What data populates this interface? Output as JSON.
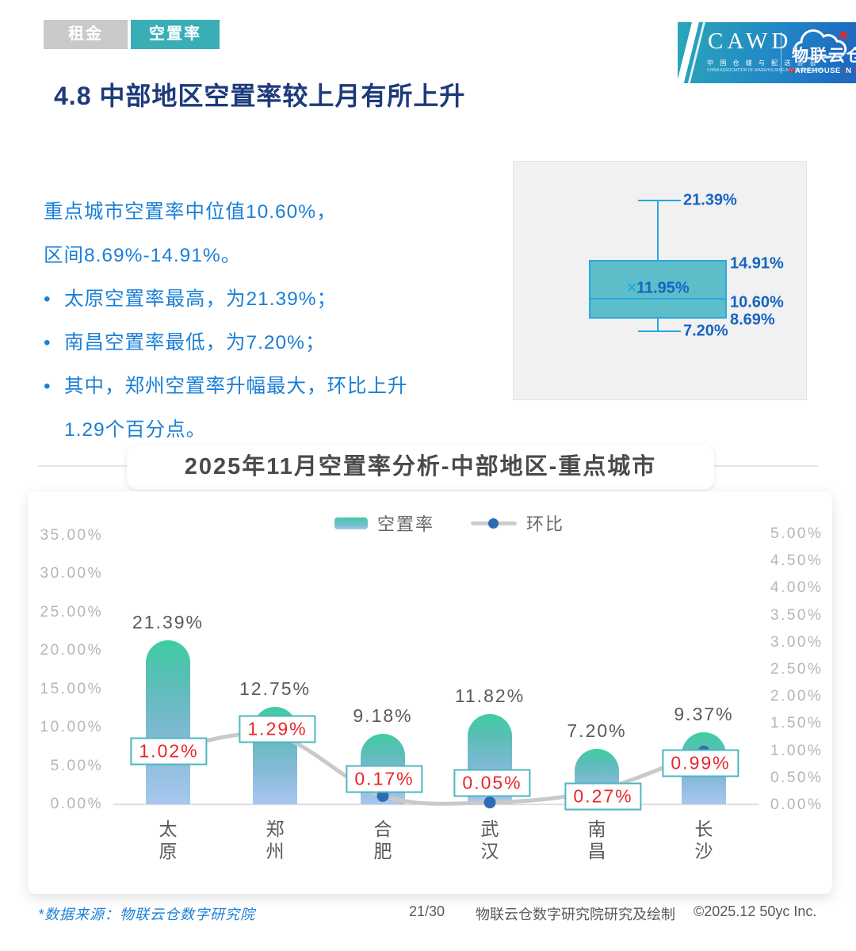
{
  "tabs": [
    {
      "label": "租金",
      "active": false
    },
    {
      "label": "空置率",
      "active": true
    }
  ],
  "logo": {
    "cawd": "CAWD",
    "cawd_cn": "中 国 仓 储 与 配 送 协 会",
    "cawd_en": "CHINA ASSOCIATION OF WAREHOUSING AND DISTRIBUTION",
    "wic_cn": "物联云仓",
    "wic_en": "WAREHOUSE IN CLOUD",
    "wic_en_red_indices": [
      0,
      10,
      13
    ]
  },
  "page_title": "4.8 中部地区空置率较上月有所上升",
  "summary": {
    "lines": [
      "重点城市空置率中位值10.60%，",
      "区间8.69%-14.91%。"
    ],
    "bullet_marker": "•",
    "bullets": [
      "太原空置率最高，为21.39%；",
      "南昌空置率最低，为7.20%；",
      "其中，郑州空置率升幅最大，环比上升\n1.29个百分点。"
    ]
  },
  "colors": {
    "tab_active": "#3aaeb7",
    "tab_inactive": "#c9c9c9",
    "title_navy": "#1e3a7c",
    "summary_blue": "#1a7fd6",
    "box_fill": "#48b6c4",
    "box_border": "#29a8e0",
    "box_label_blue": "#1565c0",
    "bar_top": "#3ecda1",
    "bar_bottom": "#a9c7ef",
    "line_gray": "#c9c9c9",
    "dot_blue": "#2e6cb6",
    "mom_label_red": "#e8262a",
    "mom_label_border": "#4eb6c2",
    "axis_gray": "#b5b5b5"
  },
  "chart_data": [
    {
      "type": "boxplot",
      "description": "重点城市空置率分布（中部地区）",
      "max": 21.39,
      "q3": 14.91,
      "mean": 11.95,
      "median": 10.6,
      "q1": 8.69,
      "min": 7.2,
      "display": {
        "max": "21.39%",
        "q3": "14.91%",
        "mean_marker": "×",
        "mean": "11.95%",
        "median": "10.60%",
        "q1": "8.69%",
        "min": "7.20%"
      }
    },
    {
      "type": "bar+line",
      "title": "2025年11月空置率分析-中部地区-重点城市",
      "categories": [
        "太原",
        "郑州",
        "合肥",
        "武汉",
        "南昌",
        "长沙"
      ],
      "series": [
        {
          "name": "空置率",
          "type": "bar",
          "axis": "left",
          "values": [
            21.39,
            12.75,
            9.18,
            11.82,
            7.2,
            9.37
          ]
        },
        {
          "name": "环比",
          "type": "line",
          "axis": "right",
          "values": [
            1.02,
            1.29,
            0.17,
            0.05,
            0.27,
            0.99
          ]
        }
      ],
      "left_axis": {
        "min": 0,
        "max": 35,
        "step": 5,
        "ticks": [
          35,
          30,
          25,
          20,
          15,
          10,
          5,
          0
        ]
      },
      "right_axis": {
        "min": 0,
        "max": 5,
        "step": 0.5,
        "ticks": [
          5,
          4.5,
          4,
          3.5,
          3,
          2.5,
          2,
          1.5,
          1,
          0.5,
          0
        ]
      },
      "grid": false,
      "legend_position": "top-center"
    }
  ],
  "footer": {
    "source": "*数据来源：物联云仓数字研究院",
    "page": "21/30",
    "credit": "物联云仓数字研究院研究及绘制",
    "copyright": "©2025.12 50yc Inc."
  }
}
